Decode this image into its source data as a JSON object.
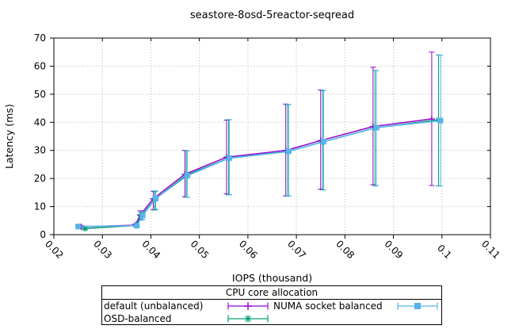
{
  "chart_data": {
    "type": "line",
    "title": "seastore-8osd-5reactor-seqread",
    "xlabel": "IOPS (thousand)",
    "ylabel": "Latency (ms)",
    "xlim": [
      0.02,
      0.11
    ],
    "ylim": [
      0,
      70
    ],
    "xtick_values": [
      0.02,
      0.03,
      0.04,
      0.05,
      0.06,
      0.07,
      0.08,
      0.09,
      0.1,
      0.11
    ],
    "xtick_labels": [
      "0.02",
      "0.03",
      "0.04",
      "0.05",
      "0.06",
      "0.07",
      "0.08",
      "0.09",
      "0.1",
      "0.11"
    ],
    "ytick_values": [
      0,
      10,
      20,
      30,
      40,
      50,
      60,
      70
    ],
    "ytick_labels": [
      "0",
      "10",
      "20",
      "30",
      "40",
      "50",
      "60",
      "70"
    ],
    "grid": true,
    "grid_style": "dotted",
    "legend": {
      "title": "CPU core allocation",
      "position": "below-chart",
      "columns": 2
    },
    "point_format": "[x, y, y_low, y_high] with asymmetric error bars",
    "series": [
      {
        "name": "default (unbalanced)",
        "color": "#9400d3",
        "marker": "plus",
        "points": [
          [
            0.0256,
            2.8,
            2.3,
            3.3
          ],
          [
            0.0368,
            3.4,
            3.0,
            3.8
          ],
          [
            0.0378,
            7.0,
            5.5,
            8.5
          ],
          [
            0.0405,
            12.8,
            9.0,
            15.5
          ],
          [
            0.047,
            21.5,
            13.5,
            30.0
          ],
          [
            0.0556,
            27.6,
            14.5,
            40.8
          ],
          [
            0.0678,
            30.0,
            13.8,
            46.5
          ],
          [
            0.075,
            33.5,
            16.2,
            51.5
          ],
          [
            0.0858,
            38.5,
            17.8,
            59.6
          ],
          [
            0.0979,
            41.2,
            17.5,
            65.0
          ]
        ]
      },
      {
        "name": "OSD-balanced",
        "color": "#009e73",
        "marker": "asterisk",
        "points": [
          [
            0.0264,
            2.2,
            1.8,
            2.7
          ],
          [
            0.037,
            3.3,
            2.9,
            3.7
          ],
          [
            0.038,
            6.6,
            5.2,
            8.0
          ],
          [
            0.0408,
            12.6,
            8.8,
            15.3
          ],
          [
            0.0473,
            21.2,
            13.3,
            29.8
          ],
          [
            0.056,
            27.2,
            14.2,
            40.9
          ],
          [
            0.0682,
            29.6,
            13.7,
            46.3
          ],
          [
            0.0754,
            33.0,
            15.9,
            51.3
          ],
          [
            0.0862,
            38.0,
            17.4,
            58.5
          ],
          [
            0.0993,
            40.9,
            17.4,
            64.0
          ]
        ]
      },
      {
        "name": "NUMA socket balanced",
        "color": "#56b4e9",
        "marker": "square",
        "points": [
          [
            0.025,
            2.9,
            2.4,
            3.4
          ],
          [
            0.0371,
            3.2,
            2.8,
            3.6
          ],
          [
            0.0383,
            6.8,
            5.3,
            8.2
          ],
          [
            0.041,
            12.9,
            9.1,
            15.6
          ],
          [
            0.0475,
            21.0,
            13.4,
            29.9
          ],
          [
            0.0562,
            27.3,
            14.3,
            41.0
          ],
          [
            0.0684,
            29.7,
            13.8,
            46.4
          ],
          [
            0.0756,
            33.1,
            16.0,
            51.4
          ],
          [
            0.0865,
            38.1,
            17.5,
            58.4
          ],
          [
            0.0997,
            40.6,
            17.3,
            63.9
          ]
        ]
      }
    ]
  }
}
